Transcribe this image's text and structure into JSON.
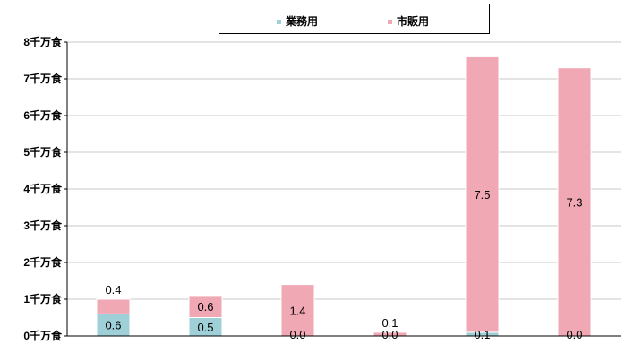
{
  "chart_data": {
    "type": "bar",
    "stacked": true,
    "categories": [
      "",
      "",
      "",
      "",
      "",
      ""
    ],
    "series": [
      {
        "name": "業務用",
        "color": "#9fd0d8",
        "values": [
          0.6,
          0.5,
          0.0,
          0.0,
          0.1,
          0.0
        ]
      },
      {
        "name": "市販用",
        "color": "#f0a8b4",
        "values": [
          0.4,
          0.6,
          1.4,
          0.1,
          7.5,
          7.3
        ]
      }
    ],
    "ylim": [
      0,
      8
    ],
    "yticks": [
      "0千万食",
      "1千万食",
      "2千万食",
      "3千万食",
      "4千万食",
      "5千万食",
      "6千万食",
      "7千万食",
      "8千万食"
    ],
    "grid": true,
    "legend": "top-center"
  }
}
